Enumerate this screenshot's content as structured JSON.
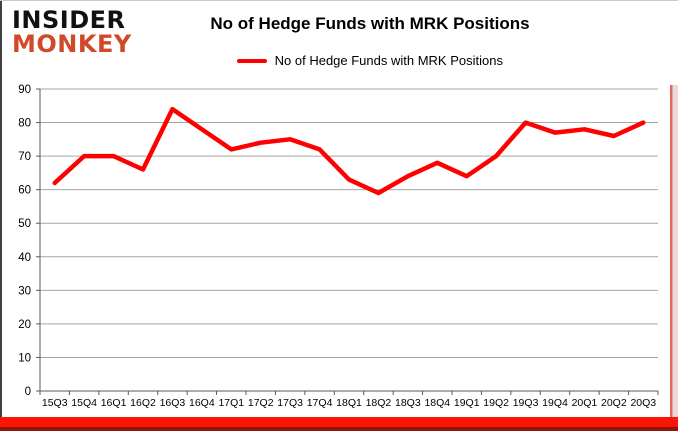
{
  "logo": {
    "line1": "INSIDER",
    "line2": "MONKEY"
  },
  "title": "No of Hedge Funds with MRK Positions",
  "legend": {
    "label": "No of Hedge Funds with MRK Positions"
  },
  "chart_data": {
    "type": "line",
    "title": "No of Hedge Funds with MRK Positions",
    "categories": [
      "15Q3",
      "15Q4",
      "16Q1",
      "16Q2",
      "16Q3",
      "16Q4",
      "17Q1",
      "17Q2",
      "17Q3",
      "17Q4",
      "18Q1",
      "18Q2",
      "18Q3",
      "18Q4",
      "19Q1",
      "19Q2",
      "19Q3",
      "19Q4",
      "20Q1",
      "20Q2",
      "20Q3"
    ],
    "series": [
      {
        "name": "No of Hedge Funds with MRK Positions",
        "color": "#ff0000",
        "values": [
          62,
          70,
          70,
          66,
          84,
          78,
          72,
          74,
          75,
          72,
          63,
          59,
          64,
          68,
          64,
          70,
          80,
          77,
          78,
          76,
          80
        ]
      }
    ],
    "ylim": [
      0,
      90
    ],
    "ytick_step": 10,
    "grid": "horizontal",
    "legend_position": "top"
  },
  "colors": {
    "line": "#ff0000",
    "gridline": "#a6a6a6",
    "axis": "#595959",
    "tick_label": "#000000",
    "logo_black": "#111111",
    "logo_accent": "#d2492a",
    "footer_band": "#fb1507",
    "footer_band_dark": "#8e160c",
    "right_strip": "#f6d4d2"
  }
}
